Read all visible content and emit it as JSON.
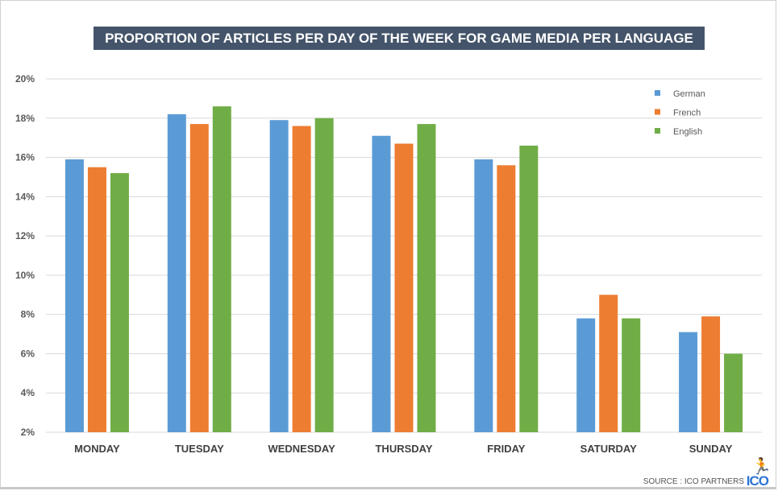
{
  "chart_data": {
    "type": "bar",
    "title": "PROPORTION OF ARTICLES PER DAY OF THE WEEK FOR GAME MEDIA PER LANGUAGE",
    "categories": [
      "MONDAY",
      "TUESDAY",
      "WEDNESDAY",
      "THURSDAY",
      "FRIDAY",
      "SATURDAY",
      "SUNDAY"
    ],
    "series": [
      {
        "name": "German",
        "color": "#5b9bd5",
        "values": [
          15.9,
          18.2,
          17.9,
          17.1,
          15.9,
          7.8,
          7.1
        ]
      },
      {
        "name": "French",
        "color": "#ed7d31",
        "values": [
          15.5,
          17.7,
          17.6,
          16.7,
          15.6,
          9.0,
          7.9
        ]
      },
      {
        "name": "English",
        "color": "#70ad47",
        "values": [
          15.2,
          18.6,
          18.0,
          17.7,
          16.6,
          7.8,
          6.0
        ]
      }
    ],
    "ylim": [
      2,
      20
    ],
    "yticks": [
      "2%",
      "4%",
      "6%",
      "8%",
      "10%",
      "12%",
      "14%",
      "16%",
      "18%",
      "20%"
    ],
    "grid": true,
    "legend": "top-right"
  },
  "source": "SOURCE : ICO PARTNERS",
  "logo": "ICO"
}
